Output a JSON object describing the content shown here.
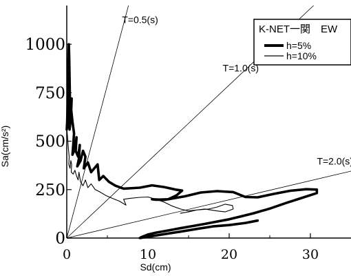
{
  "chart_data": {
    "type": "line",
    "xlabel": "Sd(cm)",
    "ylabel": "Sa(cm/s²)",
    "xlim": [
      0,
      35
    ],
    "ylim": [
      0,
      1200
    ],
    "x_ticks": [
      {
        "value": 0,
        "label": "0"
      },
      {
        "value": 10,
        "label": "10"
      },
      {
        "value": 20,
        "label": "20"
      },
      {
        "value": 30,
        "label": "30"
      }
    ],
    "y_ticks": [
      {
        "value": 0,
        "label": "0"
      },
      {
        "value": 250,
        "label": "250"
      },
      {
        "value": 500,
        "label": "500"
      },
      {
        "value": 750,
        "label": "750"
      },
      {
        "value": 1000,
        "label": "1000"
      }
    ],
    "period_lines": [
      {
        "T": 0.5,
        "label": "T=0.5(s)",
        "label_anchor": [
          6.8,
          1110
        ]
      },
      {
        "T": 1.0,
        "label": "T=1.0(s)",
        "label_anchor": [
          19.2,
          860
        ]
      },
      {
        "T": 2.0,
        "label": "T=2.0(s)",
        "label_anchor": [
          30.8,
          380
        ]
      }
    ],
    "legend": {
      "title": "K-NET一関　EW",
      "position": "top-right"
    },
    "series": [
      {
        "name": "h=5%",
        "stroke": "#000000",
        "weight": "thick",
        "points": [
          [
            0.0,
            560
          ],
          [
            0.05,
            600
          ],
          [
            0.1,
            680
          ],
          [
            0.15,
            820
          ],
          [
            0.2,
            930
          ],
          [
            0.25,
            1000
          ],
          [
            0.3,
            940
          ],
          [
            0.35,
            820
          ],
          [
            0.4,
            700
          ],
          [
            0.3,
            640
          ],
          [
            0.2,
            600
          ],
          [
            0.35,
            560
          ],
          [
            0.5,
            620
          ],
          [
            0.6,
            720
          ],
          [
            0.55,
            660
          ],
          [
            0.7,
            600
          ],
          [
            0.9,
            540
          ],
          [
            0.8,
            480
          ],
          [
            0.7,
            430
          ],
          [
            1.0,
            460
          ],
          [
            1.2,
            520
          ],
          [
            1.1,
            450
          ],
          [
            1.4,
            420
          ],
          [
            1.6,
            480
          ],
          [
            1.5,
            410
          ],
          [
            1.3,
            370
          ],
          [
            1.7,
            400
          ],
          [
            2.0,
            450
          ],
          [
            2.3,
            420
          ],
          [
            2.1,
            360
          ],
          [
            2.6,
            390
          ],
          [
            3.0,
            340
          ],
          [
            3.4,
            360
          ],
          [
            3.8,
            380
          ],
          [
            4.0,
            300
          ],
          [
            4.5,
            320
          ],
          [
            5.2,
            290
          ],
          [
            6.0,
            270
          ],
          [
            7.0,
            255
          ],
          [
            8.3,
            258
          ],
          [
            9.0,
            260
          ],
          [
            10.5,
            272
          ],
          [
            12.0,
            263
          ],
          [
            13.4,
            250
          ],
          [
            14.2,
            245
          ],
          [
            13.5,
            220
          ],
          [
            12.5,
            200
          ],
          [
            11.0,
            198
          ],
          [
            10.5,
            200
          ],
          [
            12.0,
            197
          ],
          [
            14.5,
            215
          ],
          [
            16.5,
            235
          ],
          [
            18.5,
            242
          ],
          [
            20.5,
            237
          ],
          [
            22.0,
            212
          ],
          [
            23.5,
            210
          ],
          [
            25.5,
            228
          ],
          [
            27.5,
            244
          ],
          [
            29.5,
            252
          ],
          [
            30.8,
            250
          ],
          [
            30.8,
            232
          ],
          [
            29.0,
            208
          ],
          [
            27.0,
            181
          ],
          [
            25.0,
            152
          ],
          [
            23.0,
            128
          ],
          [
            21.5,
            112
          ],
          [
            20.0,
            97
          ],
          [
            18.5,
            85
          ],
          [
            17.0,
            73
          ],
          [
            15.5,
            62
          ],
          [
            14.0,
            51
          ],
          [
            12.5,
            39
          ],
          [
            11.0,
            28
          ],
          [
            10.0,
            18
          ],
          [
            9.2,
            5
          ],
          [
            9.0,
            0
          ],
          [
            10.5,
            10
          ],
          [
            12.0,
            20
          ],
          [
            14.0,
            33
          ],
          [
            16.0,
            47
          ],
          [
            18.0,
            60
          ],
          [
            20.0,
            67
          ],
          [
            22.0,
            78
          ],
          [
            23.5,
            90
          ]
        ]
      },
      {
        "name": "h=10%",
        "stroke": "#000000",
        "weight": "thin",
        "points": [
          [
            0.0,
            570
          ],
          [
            0.1,
            520
          ],
          [
            0.2,
            460
          ],
          [
            0.3,
            420
          ],
          [
            0.25,
            380
          ],
          [
            0.4,
            360
          ],
          [
            0.5,
            400
          ],
          [
            0.6,
            380
          ],
          [
            0.55,
            340
          ],
          [
            0.8,
            330
          ],
          [
            1.0,
            350
          ],
          [
            1.2,
            320
          ],
          [
            1.4,
            300
          ],
          [
            1.5,
            340
          ],
          [
            1.7,
            290
          ],
          [
            2.0,
            270
          ],
          [
            2.3,
            300
          ],
          [
            2.6,
            260
          ],
          [
            3.0,
            280
          ],
          [
            3.5,
            250
          ],
          [
            4.0,
            240
          ],
          [
            4.8,
            220
          ],
          [
            5.6,
            205
          ],
          [
            6.5,
            190
          ],
          [
            7.3,
            170
          ],
          [
            7.0,
            200
          ],
          [
            7.8,
            205
          ],
          [
            9.0,
            210
          ],
          [
            10.0,
            212
          ],
          [
            11.0,
            200
          ],
          [
            12.0,
            185
          ],
          [
            13.0,
            165
          ],
          [
            14.0,
            150
          ],
          [
            15.0,
            140
          ],
          [
            16.0,
            145
          ],
          [
            17.5,
            150
          ],
          [
            18.5,
            160
          ],
          [
            19.5,
            175
          ],
          [
            20.4,
            168
          ],
          [
            20.5,
            150
          ],
          [
            19.5,
            135
          ],
          [
            18.5,
            140
          ],
          [
            17.0,
            150
          ],
          [
            16.0,
            145
          ],
          [
            15.0,
            135
          ],
          [
            14.0,
            128
          ]
        ]
      }
    ]
  }
}
